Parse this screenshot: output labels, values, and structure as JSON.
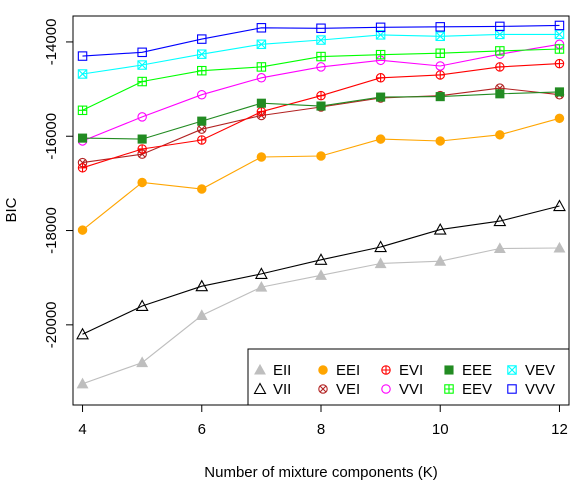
{
  "chart_data": {
    "type": "line",
    "title": "",
    "xlabel": "Number of mixture components (K)",
    "ylabel": "BIC",
    "xlim": [
      3.84,
      12.16
    ],
    "ylim": [
      -21700,
      -13450
    ],
    "x": [
      4,
      5,
      6,
      7,
      8,
      9,
      10,
      11,
      12
    ],
    "xticks": [
      4,
      6,
      8,
      10,
      12
    ],
    "yticks": [
      -20000,
      -18000,
      -16000,
      -14000
    ],
    "ytick_labels": [
      "-20000",
      "-18000",
      "-16000",
      "-14000"
    ],
    "grid": false,
    "legend_position": "bottom-right",
    "series": [
      {
        "name": "EII",
        "color": "#bebebe",
        "marker": "filled-triangle",
        "values": [
          -21250,
          -20800,
          -19800,
          -19200,
          -18950,
          -18700,
          -18650,
          -18380,
          -18370
        ]
      },
      {
        "name": "VII",
        "color": "#000000",
        "marker": "open-triangle",
        "values": [
          -20200,
          -19600,
          -19180,
          -18920,
          -18620,
          -18350,
          -17980,
          -17800,
          -17480
        ]
      },
      {
        "name": "EEI",
        "color": "#ffa500",
        "marker": "filled-circle",
        "values": [
          -17990,
          -16980,
          -17120,
          -16440,
          -16420,
          -16060,
          -16100,
          -15970,
          -15620
        ]
      },
      {
        "name": "VEI",
        "color": "#b22222",
        "marker": "circle-x",
        "values": [
          -16560,
          -16380,
          -15850,
          -15560,
          -15380,
          -15190,
          -15140,
          -14980,
          -15120
        ]
      },
      {
        "name": "EVI",
        "color": "#ff0000",
        "marker": "circle-plus",
        "values": [
          -16670,
          -16270,
          -16080,
          -15480,
          -15140,
          -14760,
          -14700,
          -14530,
          -14460
        ]
      },
      {
        "name": "VVI",
        "color": "#ff00ff",
        "marker": "open-circle",
        "values": [
          -16100,
          -15590,
          -15120,
          -14760,
          -14530,
          -14390,
          -14510,
          -14260,
          -14050
        ]
      },
      {
        "name": "EEE",
        "color": "#228b22",
        "marker": "filled-square",
        "values": [
          -16040,
          -16060,
          -15680,
          -15300,
          -15360,
          -15170,
          -15160,
          -15100,
          -15060
        ]
      },
      {
        "name": "EEV",
        "color": "#00ff00",
        "marker": "square-plus",
        "values": [
          -15450,
          -14840,
          -14610,
          -14530,
          -14310,
          -14270,
          -14240,
          -14190,
          -14150
        ]
      },
      {
        "name": "VEV",
        "color": "#00ffff",
        "marker": "square-x",
        "values": [
          -14680,
          -14490,
          -14260,
          -14050,
          -13960,
          -13850,
          -13880,
          -13840,
          -13840
        ]
      },
      {
        "name": "VVV",
        "color": "#0000ff",
        "marker": "open-square",
        "values": [
          -14300,
          -14220,
          -13940,
          -13700,
          -13710,
          -13690,
          -13680,
          -13670,
          -13650
        ]
      }
    ]
  }
}
